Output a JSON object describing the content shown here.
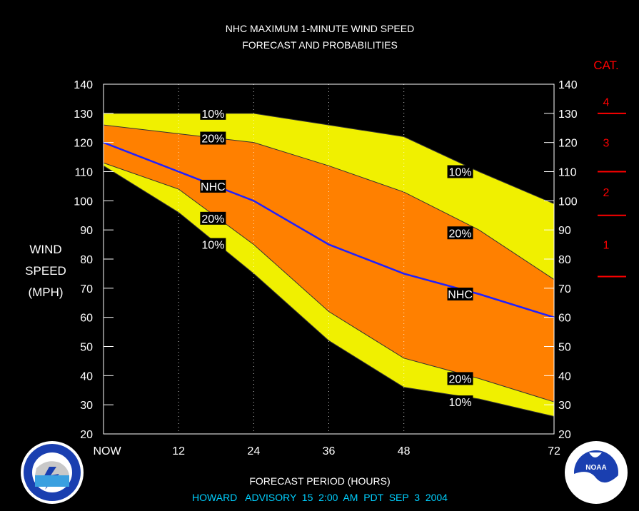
{
  "title_line1": "NHC MAXIMUM 1-MINUTE WIND SPEED",
  "title_line2": "FORECAST AND PROBABILITIES",
  "ylabel_lines": [
    "WIND",
    "SPEED",
    "(MPH)"
  ],
  "xlabel": "FORECAST PERIOD (HOURS)",
  "advisory_line": "HOWARD   ADVISORY  15  2:00  AM  PDT  SEP  3  2004",
  "cat_title": "CAT.",
  "colors": {
    "background": "#000000",
    "outer_band": "#f0f000",
    "inner_band": "#ff8000",
    "nhc_line": "#2020ff",
    "cat_red": "#ff0000",
    "advisory_text": "#00d0ff",
    "text": "#ffffff"
  },
  "chart_data": {
    "type": "area",
    "x": [
      0,
      12,
      24,
      36,
      48,
      60,
      72
    ],
    "x_tick_labels": [
      "NOW",
      "12",
      "24",
      "36",
      "48",
      "",
      "72"
    ],
    "xlim": [
      0,
      72
    ],
    "ylim": [
      20,
      140
    ],
    "y_ticks": [
      20,
      30,
      40,
      50,
      60,
      70,
      80,
      90,
      100,
      110,
      120,
      130,
      140
    ],
    "vertical_grid_x": [
      12,
      24,
      36,
      48
    ],
    "bands": [
      {
        "name": "10%",
        "upper": [
          130,
          130,
          130,
          126,
          122,
          110,
          99
        ],
        "lower": [
          112,
          96,
          75,
          52,
          36,
          32,
          26
        ]
      },
      {
        "name": "20%",
        "upper": [
          126,
          123,
          120,
          112,
          103,
          90,
          73
        ],
        "lower": [
          113,
          104,
          85,
          62,
          46,
          39,
          31
        ]
      }
    ],
    "series": [
      {
        "name": "NHC",
        "values": [
          120,
          110,
          100,
          85,
          75,
          68,
          60
        ]
      }
    ],
    "labels": [
      {
        "text": "10%",
        "x": 17.5,
        "y": 130
      },
      {
        "text": "20%",
        "x": 17.5,
        "y": 121.5
      },
      {
        "text": "NHC",
        "x": 17.5,
        "y": 105
      },
      {
        "text": "20%",
        "x": 17.5,
        "y": 94
      },
      {
        "text": "10%",
        "x": 17.5,
        "y": 85
      },
      {
        "text": "10%",
        "x": 57,
        "y": 110
      },
      {
        "text": "20%",
        "x": 57,
        "y": 89
      },
      {
        "text": "NHC",
        "x": 57,
        "y": 68
      },
      {
        "text": "20%",
        "x": 57,
        "y": 39
      },
      {
        "text": "10%",
        "x": 57,
        "y": 31
      }
    ],
    "categories": [
      {
        "label": "4",
        "y": 134
      },
      {
        "label": "3",
        "y": 120
      },
      {
        "label": "2",
        "y": 103
      },
      {
        "label": "1",
        "y": 85
      }
    ],
    "category_thresholds": [
      130,
      110,
      95,
      74
    ]
  }
}
